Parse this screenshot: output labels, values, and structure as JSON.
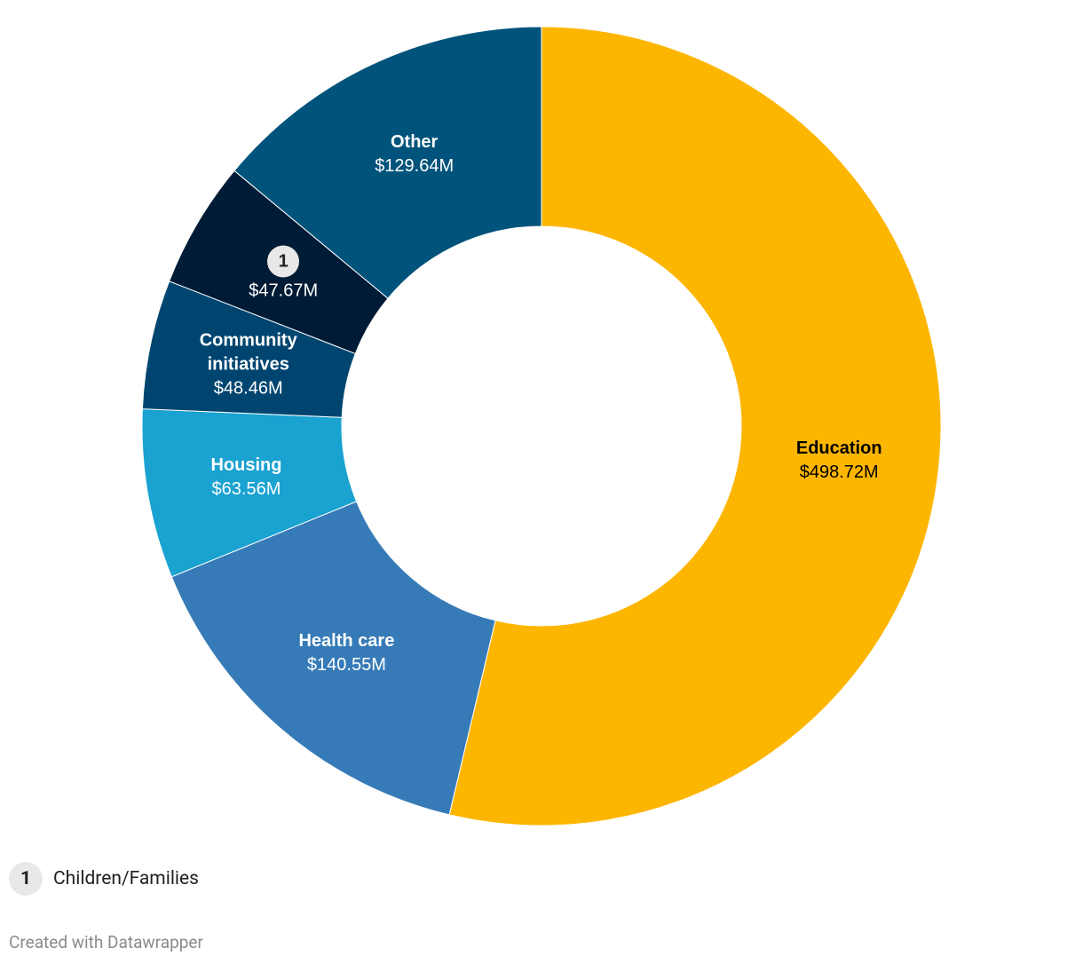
{
  "chart_data": {
    "type": "donut",
    "categories": [
      "Education",
      "Health care",
      "Housing",
      "Community initiatives",
      "1",
      "Other"
    ],
    "values": [
      498.72,
      140.55,
      63.56,
      48.46,
      47.67,
      129.64
    ],
    "value_labels": [
      "$498.72M",
      "$140.55M",
      "$63.56M",
      "$48.46M",
      "$47.67M",
      "$129.64M"
    ],
    "colors": [
      "#fdb600",
      "#367bb7",
      "#1aa2d0",
      "#004570",
      "#001b35",
      "#00537b"
    ],
    "label_colors": [
      "#000000",
      "#ffffff",
      "#ffffff",
      "#ffffff",
      "#ffffff",
      "#ffffff"
    ],
    "footnotes": [
      {
        "marker": "1",
        "text": "Children/Families"
      }
    ],
    "credit": "Created with Datawrapper"
  }
}
